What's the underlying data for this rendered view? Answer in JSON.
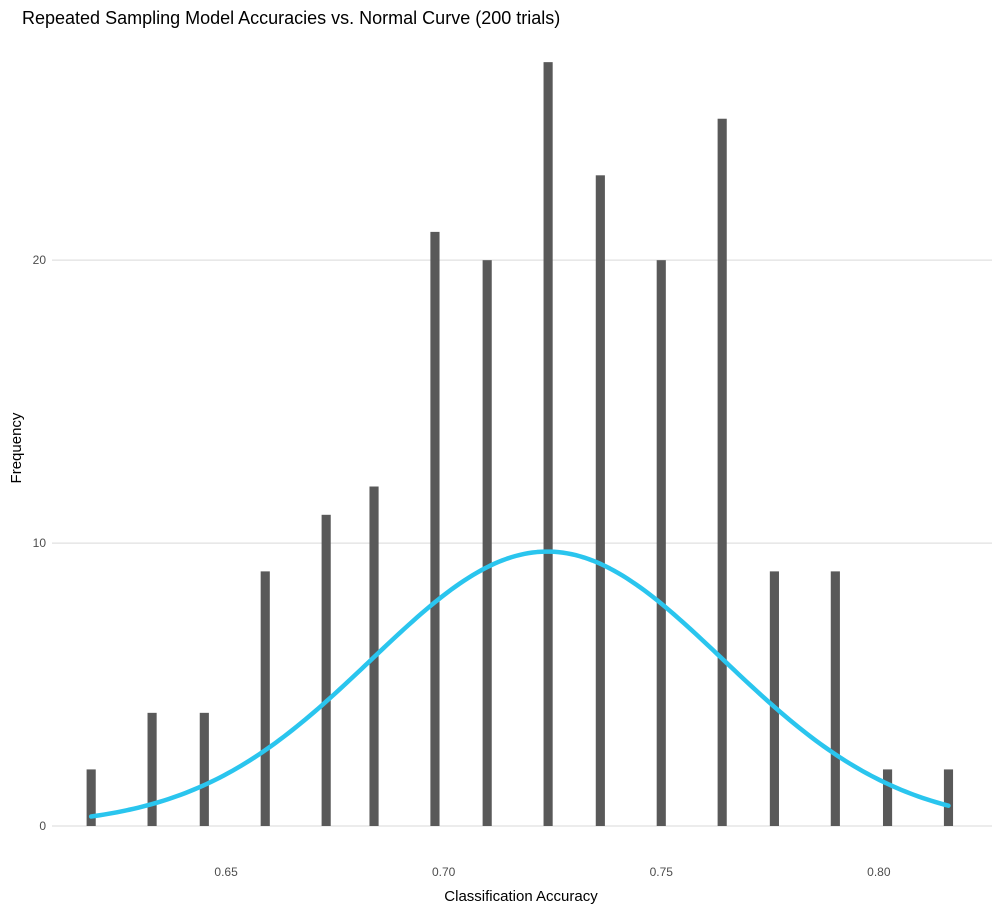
{
  "chart_data": {
    "type": "bar",
    "title": "Repeated Sampling Model Accuracies vs. Normal Curve (200 trials)",
    "xlabel": "Classification Accuracy",
    "ylabel": "Frequency",
    "xlim": [
      0.61,
      0.826
    ],
    "ylim": [
      0,
      27.5
    ],
    "xticks": [
      0.65,
      0.7,
      0.75,
      0.8
    ],
    "xtick_labels": [
      "0.65",
      "0.70",
      "0.75",
      "0.80"
    ],
    "yticks": [
      0,
      10,
      20
    ],
    "ytick_labels": [
      "0",
      "10",
      "20"
    ],
    "grid": {
      "horizontal_major": true,
      "vertical": false
    },
    "bars": {
      "color": "#595959",
      "width": 0.0021,
      "x": [
        0.619,
        0.633,
        0.645,
        0.659,
        0.673,
        0.684,
        0.698,
        0.71,
        0.724,
        0.736,
        0.75,
        0.764,
        0.776,
        0.79,
        0.802,
        0.816
      ],
      "values": [
        2,
        4,
        4,
        9,
        11,
        12,
        21,
        20,
        27,
        23,
        20,
        25,
        9,
        9,
        2,
        2
      ]
    },
    "normal_curve": {
      "color": "#2ac5ee",
      "scaled_peak": 9.7,
      "mean": 0.7238,
      "sd": 0.0404,
      "x_range": [
        0.619,
        0.816
      ]
    }
  }
}
